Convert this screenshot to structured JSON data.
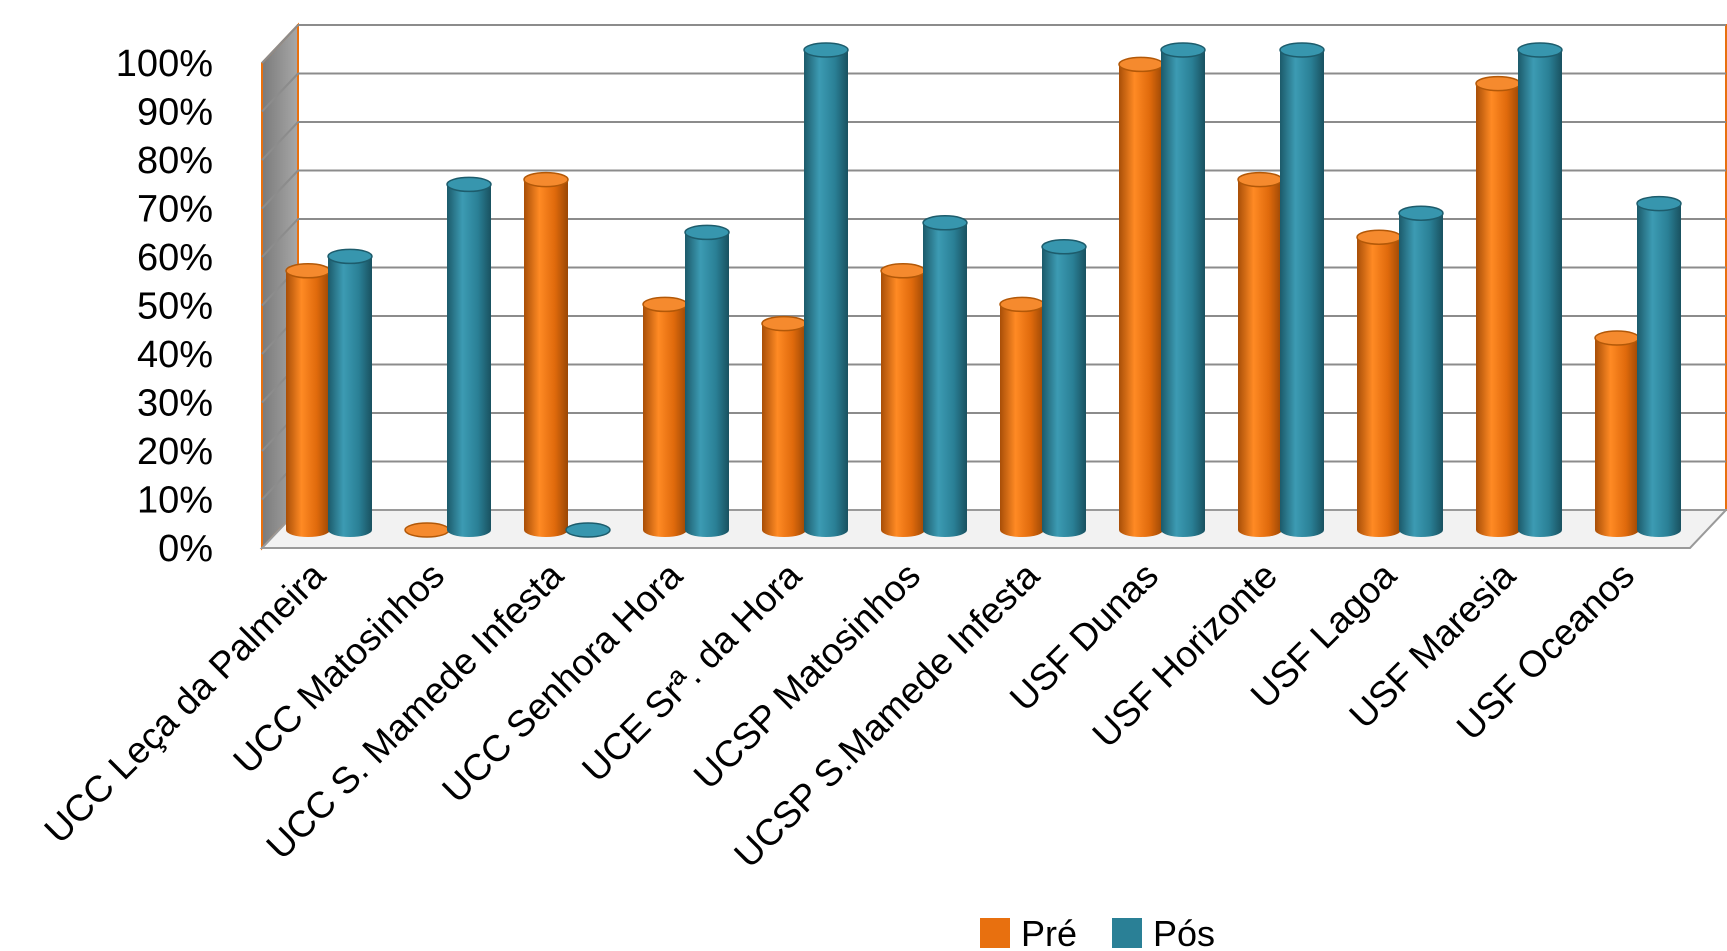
{
  "chart_data": {
    "type": "bar",
    "categories": [
      "UCC Leça da Palmeira",
      "UCC Matosinhos",
      "UCC S. Mamede Infesta",
      "UCC Senhora Hora",
      "UCE Srª. da Hora",
      "UCSP Matosinhos",
      "UCSP S.Mamede Infesta",
      "USF Dunas",
      "USF Horizonte",
      "USF Lagoa",
      "USF Maresia",
      "USF Oceanos"
    ],
    "series": [
      {
        "name": "Pré",
        "color": "#E8700F",
        "values": [
          54,
          0,
          73,
          47,
          43,
          54,
          47,
          97,
          73,
          61,
          93,
          40
        ]
      },
      {
        "name": "Pós",
        "color": "#2A8096",
        "values": [
          57,
          72,
          0,
          62,
          100,
          64,
          59,
          100,
          100,
          66,
          100,
          68
        ]
      }
    ],
    "ylim": [
      0,
      100
    ],
    "yticks": [
      "0%",
      "10%",
      "20%",
      "30%",
      "40%",
      "50%",
      "60%",
      "70%",
      "80%",
      "90%",
      "100%"
    ],
    "grid": true,
    "legend": "bottom-center",
    "chart_style": "3d-cylinder"
  }
}
